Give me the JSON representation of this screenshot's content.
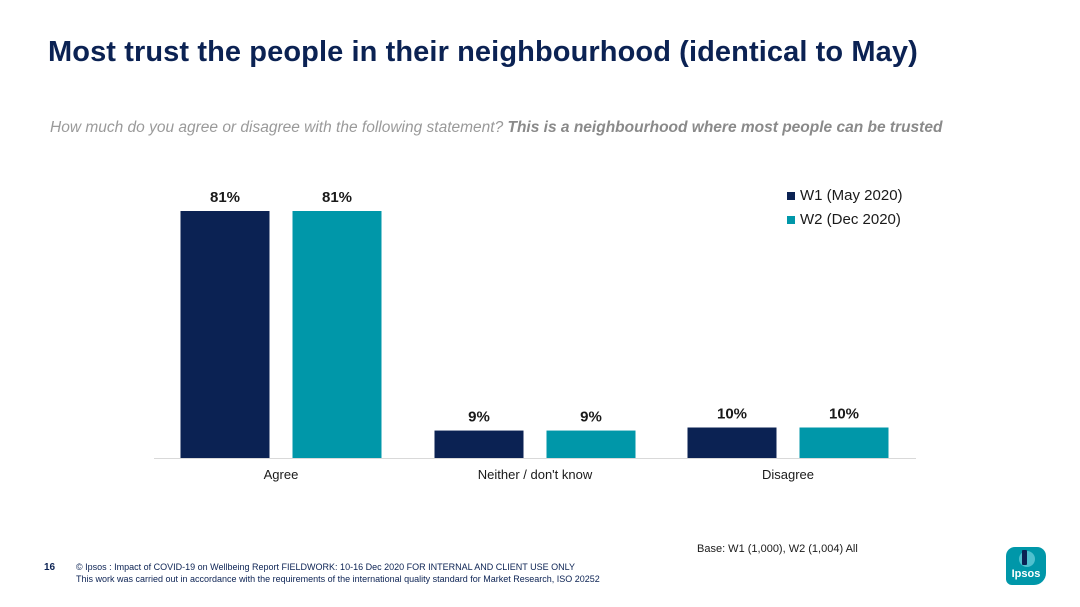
{
  "slide": {
    "title": "Most trust the people in their neighbourhood (identical to May)",
    "subtitle_question": "How much do you agree or disagree with the following statement? ",
    "subtitle_statement": "This is a neighbourhood where most people can be trusted",
    "base_note": "Base: W1 (1,000), W2 (1,004) All",
    "page_number": "16",
    "footer_line1": "© Ipsos : Impact of COVID-19 on Wellbeing Report FIELDWORK: 10-16 Dec 2020 FOR INTERNAL AND CLIENT USE ONLY",
    "footer_line2": "This work was carried out in accordance with the requirements of the international quality standard for Market Research, ISO 20252",
    "logo_text": "Ipsos"
  },
  "colors": {
    "title": "#0b2253",
    "w1": "#0b2253",
    "w2": "#0097a9",
    "axis": "#d9d9d9"
  },
  "chart_data": {
    "type": "bar",
    "categories": [
      "Agree",
      "Neither / don't know",
      "Disagree"
    ],
    "series": [
      {
        "name": "W1 (May 2020)",
        "values": [
          81,
          9,
          10
        ],
        "labels": [
          "81%",
          "9%",
          "10%"
        ]
      },
      {
        "name": "W2 (Dec 2020)",
        "values": [
          81,
          9,
          10
        ],
        "labels": [
          "81%",
          "9%",
          "10%"
        ]
      }
    ],
    "ylim": [
      0,
      100
    ],
    "grid": false,
    "legend": "top-right",
    "data_labels": true
  }
}
